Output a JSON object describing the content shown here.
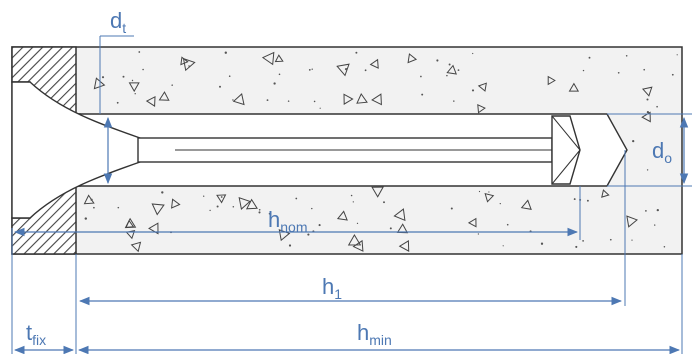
{
  "labels": {
    "d_t": {
      "main": "d",
      "sub": "t"
    },
    "d_o": {
      "main": "d",
      "sub": "o"
    },
    "h_nom": {
      "main": "h",
      "sub": "nom"
    },
    "h_1": {
      "main": "h",
      "sub": "1"
    },
    "h_min": {
      "main": "h",
      "sub": "min"
    },
    "t_fix": {
      "main": "t",
      "sub": "fix"
    }
  },
  "colors": {
    "dimension": "#4d78b3",
    "outline": "#333333",
    "concrete_fill": "#f2f2f2",
    "hatch": "#444444"
  }
}
